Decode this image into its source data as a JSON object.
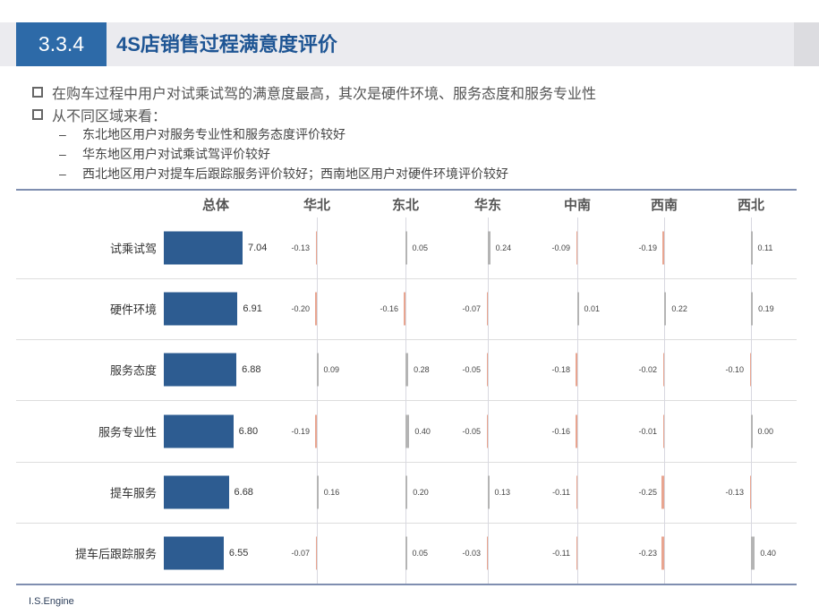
{
  "header": {
    "section_number": "3.3.4",
    "title": "4S店销售过程满意度评价"
  },
  "bullets": [
    {
      "text": "在购车过程中用户对试乘试驾的满意度最高，其次是硬件环境、服务态度和服务专业性"
    },
    {
      "text": "从不同区域来看：",
      "sub": [
        "东北地区用户对服务专业性和服务态度评价较好",
        "华东地区用户对试乘试驾评价较好",
        "西北地区用户对提车后跟踪服务评价较好；西南地区用户对硬件环境评价较好"
      ]
    }
  ],
  "colors": {
    "overall_bar": "#2d5c91",
    "positive": "#b4b4b4",
    "negative": "#e8a590",
    "accent": "#2d6aa8"
  },
  "chart_data": {
    "type": "table",
    "columns": [
      "总体",
      "华北",
      "东北",
      "华东",
      "中南",
      "西南",
      "西北"
    ],
    "rows": [
      {
        "label": "试乘试驾",
        "overall": "7.04",
        "diffs": [
          "-0.13",
          "0.05",
          "0.24",
          "-0.09",
          "-0.19",
          "0.11"
        ]
      },
      {
        "label": "硬件环境",
        "overall": "6.91",
        "diffs": [
          "-0.20",
          "-0.16",
          "-0.07",
          "0.01",
          "0.22",
          "0.19"
        ]
      },
      {
        "label": "服务态度",
        "overall": "6.88",
        "diffs": [
          "0.09",
          "0.28",
          "-0.05",
          "-0.18",
          "-0.02",
          "-0.10"
        ]
      },
      {
        "label": "服务专业性",
        "overall": "6.80",
        "diffs": [
          "-0.19",
          "0.40",
          "-0.05",
          "-0.16",
          "-0.01",
          "0.00"
        ]
      },
      {
        "label": "提车服务",
        "overall": "6.68",
        "diffs": [
          "0.16",
          "0.20",
          "0.13",
          "-0.11",
          "-0.25",
          "-0.13"
        ]
      },
      {
        "label": "提车后跟踪服务",
        "overall": "6.55",
        "diffs": [
          "-0.07",
          "0.05",
          "-0.03",
          "-0.11",
          "-0.23",
          "0.40"
        ]
      }
    ]
  },
  "footer": {
    "brand": "I.S.Engine"
  }
}
